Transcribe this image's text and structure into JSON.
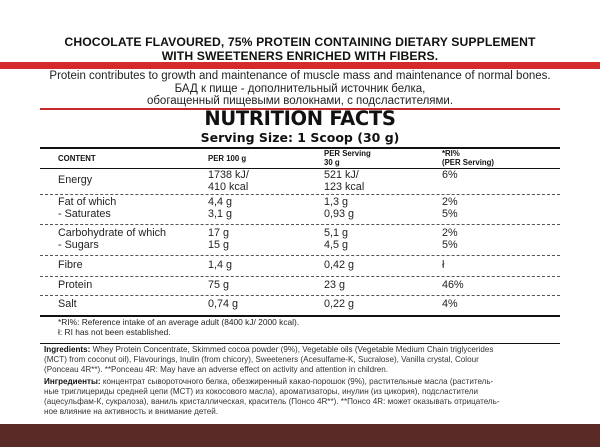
{
  "header": {
    "title_line1": "CHOCOLATE FLAVOURED, 75% PROTEIN CONTAINING DIETARY SUPPLEMENT",
    "title_line2": "WITH SWEETENERS ENRICHED WITH FIBERS."
  },
  "claims": {
    "line1": "Protein contributes to growth and maintenance of muscle mass and maintenance of normal bones.",
    "line2": "БАД к пище - дополнительный источник белка,",
    "line3": "обогащенный пищевыми волокнами, с подсластителями."
  },
  "facts": {
    "title": "NUTRITION FACTS",
    "serving": "Serving Size: 1 Scoop (30 g)",
    "columns": {
      "content": "CONTENT",
      "per100": "PER 100 g",
      "perServing_l1": "PER Serving",
      "perServing_l2": "30 g",
      "ri_l1": "*RI%",
      "ri_l2": "(PER Serving)"
    },
    "rows": [
      {
        "name": "Energy",
        "per100": "1738 kJ/",
        "per100_b": "410 kcal",
        "serving": "521 kJ/",
        "serving_b": "123 kcal",
        "ri": "6%"
      },
      {
        "name": "Fat of which",
        "name_b": "- Saturates",
        "per100": "4,4 g",
        "per100_b": "3,1 g",
        "serving": "1,3 g",
        "serving_b": "0,93 g",
        "ri": "2%",
        "ri_b": "5%"
      },
      {
        "name": "Carbohydrate of which",
        "name_b": "- Sugars",
        "per100": "17 g",
        "per100_b": "15 g",
        "serving": "5,1 g",
        "serving_b": "4,5 g",
        "ri": "2%",
        "ri_b": "5%"
      },
      {
        "name": "Fibre",
        "per100": "1,4 g",
        "serving": "0,42 g",
        "ri": "ł"
      },
      {
        "name": "Protein",
        "per100": "75 g",
        "serving": "23 g",
        "ri": "46%"
      },
      {
        "name": "Salt",
        "per100": "0,74 g",
        "serving": "0,22 g",
        "ri": "4%"
      }
    ],
    "note1": "*RI%: Reference intake of an average adult (8400 kJ/ 2000 kcal).",
    "note2": "ł: RI has not been established."
  },
  "ingredients_en": {
    "label": "Ingredients:",
    "l1": "Whey Protein Concentrate, Skimmed cocoa powder (9%), Vegetable oils (Vegetable Medium Chain triglycerides",
    "l2": "(MCT) from coconut oil), Flavourings, Inulin (from chicory), Sweeteners (Acesulfame-K, Sucralose), Vanilla crystal, Colour",
    "l3": "(Ponceau 4R**). **Ponceau 4R: May have an adverse effect on activity and attention in children."
  },
  "ingredients_ru": {
    "label": "Ингредиенты:",
    "l1": "концентрат сывороточного белка, обезжиренный какао-порошок (9%), растительные масла (раститель-",
    "l2": "ные триглицериды средней цепи (MCT) из кокосового масла), ароматизаторы, инулин (из цикория), подсластители",
    "l3": "(ацесульфам-К, сукралоза), ваниль кристаллическая, краситель (Понсо 4R**). **Понсо 4R: может оказывать отрицатель-",
    "l4": "ное влияние на активность и внимание детей."
  },
  "colors": {
    "accent_red": "#d42a2c",
    "bottom_brown": "#5a2a26"
  }
}
